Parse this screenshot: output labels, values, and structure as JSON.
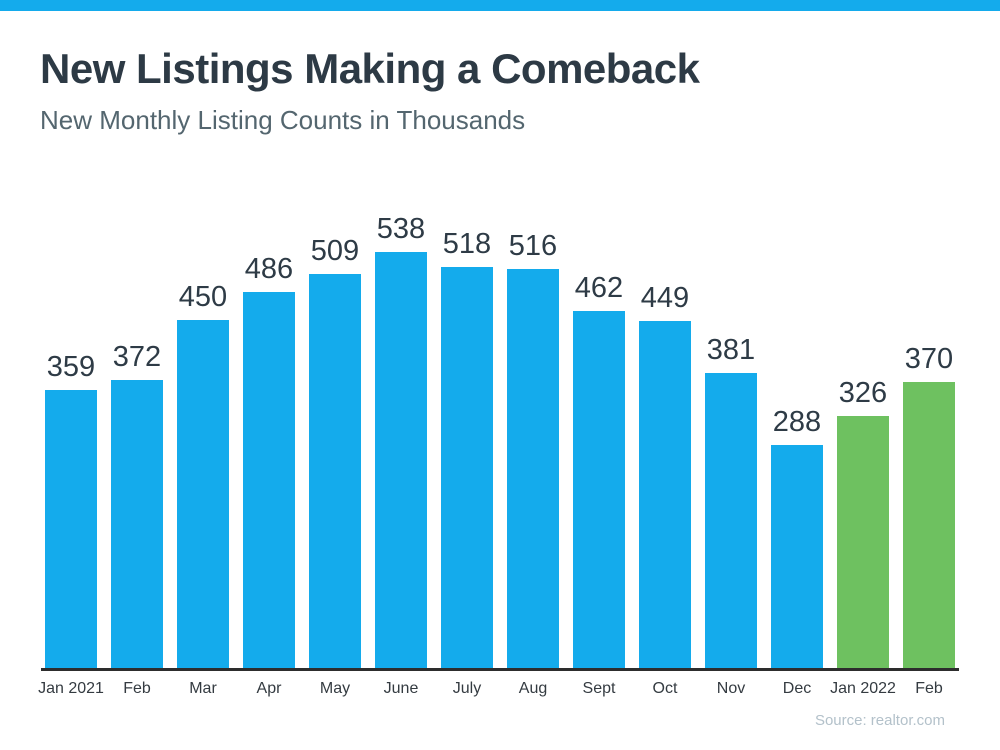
{
  "page": {
    "title": "New Listings Making a Comeback",
    "subtitle": "New Monthly Listing Counts in Thousands",
    "source": "Source: realtor.com"
  },
  "colors": {
    "accent_blue": "#14abec",
    "highlight_green": "#6ec160",
    "title_text": "#2d3a45",
    "subtitle_text": "#54666f",
    "value_label_text": "#2e3b46",
    "axis_label_text": "#343b41",
    "axis_line": "#2d2d2d",
    "source_text": "#b3c1ca"
  },
  "chart_data": {
    "type": "bar",
    "title": "New Listings Making a Comeback",
    "subtitle": "New Monthly Listing Counts in Thousands",
    "categories": [
      "Jan 2021",
      "Feb",
      "Mar",
      "Apr",
      "May",
      "June",
      "July",
      "Aug",
      "Sept",
      "Oct",
      "Nov",
      "Dec",
      "Jan 2022",
      "Feb"
    ],
    "values": [
      359,
      372,
      450,
      486,
      509,
      538,
      518,
      516,
      462,
      449,
      381,
      288,
      326,
      370
    ],
    "highlight_indices": [
      12,
      13
    ],
    "xlabel": "",
    "ylabel": "",
    "ylim": [
      0,
      560
    ],
    "grid": false,
    "legend_position": "none",
    "value_labels": true,
    "source": "Source: realtor.com"
  }
}
